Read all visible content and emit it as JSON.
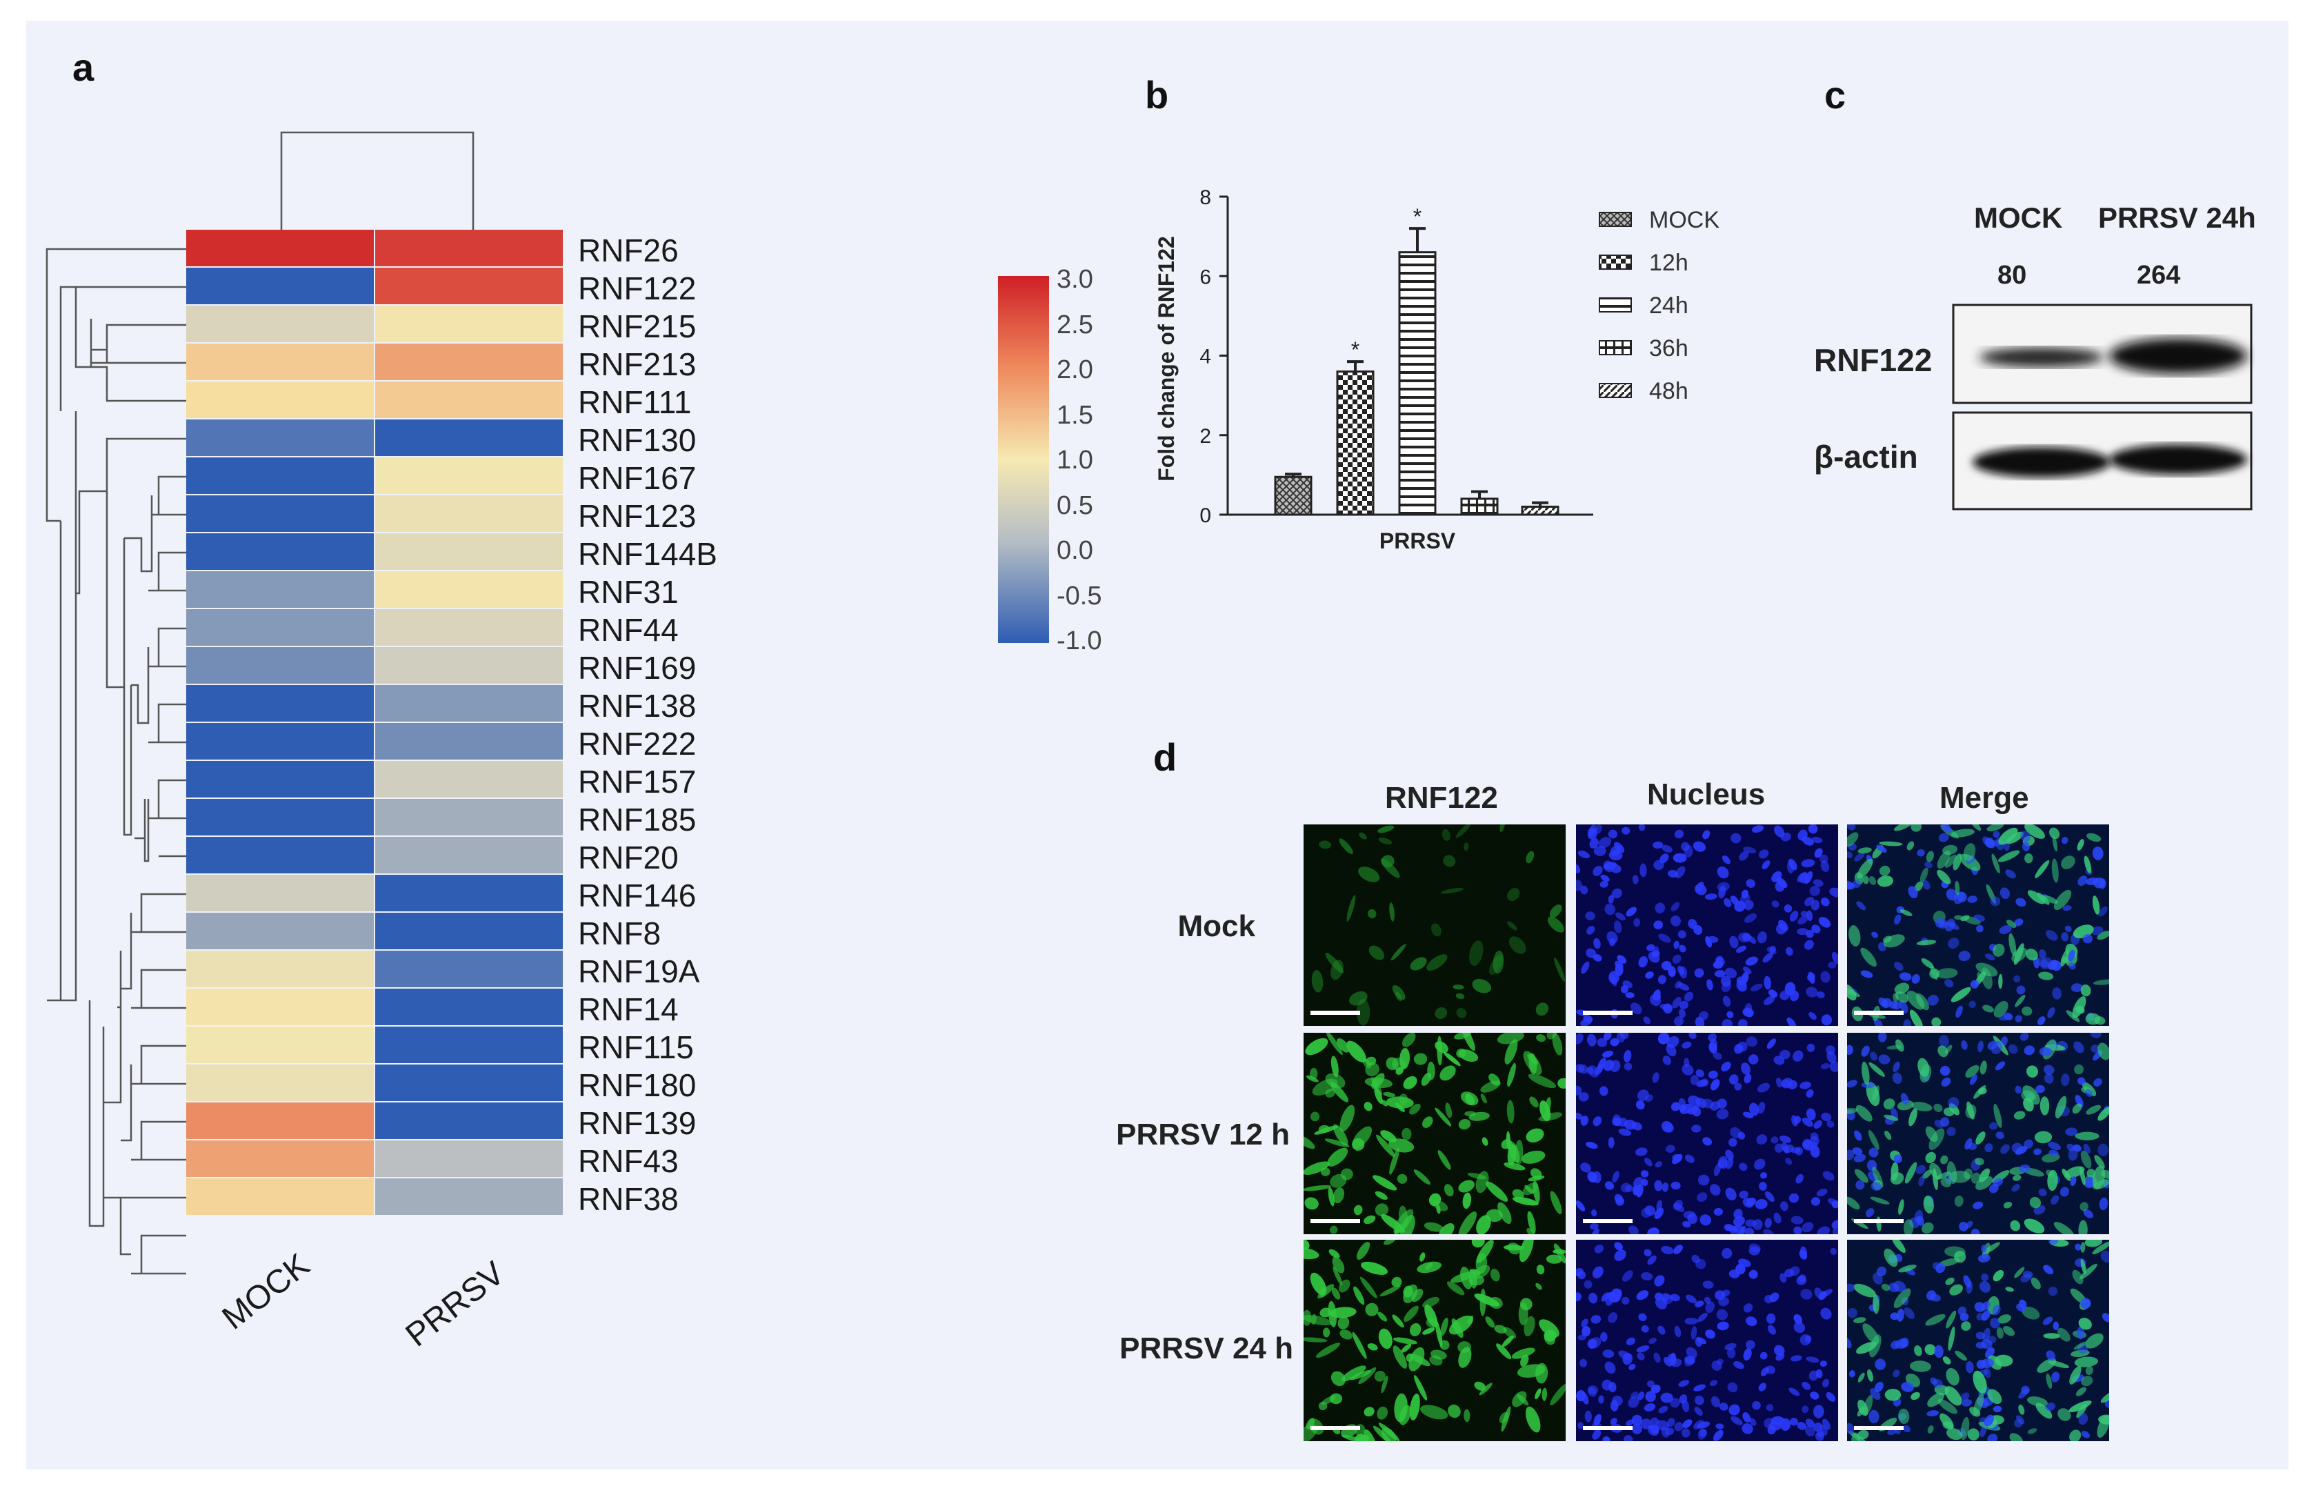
{
  "panels": {
    "a": "a",
    "b": "b",
    "c": "c",
    "d": "d"
  },
  "heatmap": {
    "columns": [
      "MOCK",
      "PRRSV"
    ],
    "rows": [
      {
        "gene": "RNF26",
        "values": [
          3.0,
          2.8
        ]
      },
      {
        "gene": "RNF122",
        "values": [
          -1.0,
          2.6
        ]
      },
      {
        "gene": "RNF215",
        "values": [
          0.2,
          0.6
        ]
      },
      {
        "gene": "RNF213",
        "values": [
          1.2,
          1.6
        ]
      },
      {
        "gene": "RNF111",
        "values": [
          1.0,
          1.2
        ]
      },
      {
        "gene": "RNF130",
        "values": [
          -0.8,
          -1.0
        ]
      },
      {
        "gene": "RNF167",
        "values": [
          -1.0,
          0.5
        ]
      },
      {
        "gene": "RNF123",
        "values": [
          -1.0,
          0.4
        ]
      },
      {
        "gene": "RNF144B",
        "values": [
          -1.0,
          0.3
        ]
      },
      {
        "gene": "RNF31",
        "values": [
          -0.5,
          0.6
        ]
      },
      {
        "gene": "RNF44",
        "values": [
          -0.5,
          0.2
        ]
      },
      {
        "gene": "RNF169",
        "values": [
          -0.6,
          0.1
        ]
      },
      {
        "gene": "RNF138",
        "values": [
          -1.0,
          -0.5
        ]
      },
      {
        "gene": "RNF222",
        "values": [
          -1.0,
          -0.6
        ]
      },
      {
        "gene": "RNF157",
        "values": [
          -1.0,
          0.1
        ]
      },
      {
        "gene": "RNF185",
        "values": [
          -1.0,
          -0.3
        ]
      },
      {
        "gene": "RNF20",
        "values": [
          -1.0,
          -0.3
        ]
      },
      {
        "gene": "RNF146",
        "values": [
          0.1,
          -1.0
        ]
      },
      {
        "gene": "RNF8",
        "values": [
          -0.4,
          -1.0
        ]
      },
      {
        "gene": "RNF19A",
        "values": [
          0.4,
          -0.8
        ]
      },
      {
        "gene": "RNF14",
        "values": [
          0.7,
          -1.0
        ]
      },
      {
        "gene": "RNF115",
        "values": [
          0.5,
          -1.0
        ]
      },
      {
        "gene": "RNF180",
        "values": [
          0.4,
          -1.0
        ]
      },
      {
        "gene": "RNF139",
        "values": [
          1.8,
          -1.0
        ]
      },
      {
        "gene": "RNF43",
        "values": [
          1.6,
          -0.1
        ]
      },
      {
        "gene": "RNF38",
        "values": [
          1.1,
          -0.3
        ]
      }
    ],
    "colorbar_ticks": [
      "3.0",
      "2.5",
      "2.0",
      "1.5",
      "1.0",
      "0.5",
      "0.0",
      "-0.5",
      "-1.0"
    ],
    "colors": {
      "high": "#cf3030",
      "mid": "#f3e8b4",
      "low": "#3550a8"
    }
  },
  "chart_data": {
    "type": "bar",
    "title": "",
    "xlabel": "PRRSV",
    "ylabel": "Fold change of RNF122",
    "ylim": [
      0,
      8
    ],
    "yticks": [
      "0",
      "2",
      "4",
      "6",
      "8"
    ],
    "categories": [
      "MOCK",
      "12h",
      "24h",
      "36h",
      "48h"
    ],
    "values": [
      0.95,
      3.6,
      6.6,
      0.4,
      0.2
    ],
    "errors": [
      0.07,
      0.25,
      0.6,
      0.18,
      0.1
    ],
    "significance": [
      "",
      "*",
      "*",
      "",
      ""
    ],
    "legend": [
      "MOCK",
      "12h",
      "24h",
      "36h",
      "48h"
    ],
    "legend_position": "right"
  },
  "western_blot": {
    "columns": [
      "MOCK",
      "PRRSV 24h"
    ],
    "quantification": [
      "80",
      "264"
    ],
    "rows": [
      "RNF122",
      "β-actin"
    ]
  },
  "microscopy": {
    "columns": [
      "RNF122",
      "Nucleus",
      "Merge"
    ],
    "rows": [
      "Mock",
      "PRRSV 12 h",
      "PRRSV 24 h"
    ]
  }
}
